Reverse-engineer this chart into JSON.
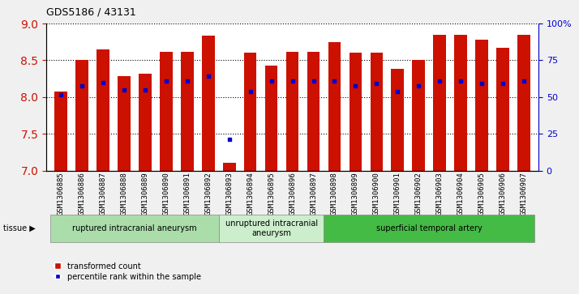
{
  "title": "GDS5186 / 43131",
  "samples": [
    "GSM1306885",
    "GSM1306886",
    "GSM1306887",
    "GSM1306888",
    "GSM1306889",
    "GSM1306890",
    "GSM1306891",
    "GSM1306892",
    "GSM1306893",
    "GSM1306894",
    "GSM1306895",
    "GSM1306896",
    "GSM1306897",
    "GSM1306898",
    "GSM1306899",
    "GSM1306900",
    "GSM1306901",
    "GSM1306902",
    "GSM1306903",
    "GSM1306904",
    "GSM1306905",
    "GSM1306906",
    "GSM1306907"
  ],
  "bar_heights": [
    8.08,
    8.5,
    8.65,
    8.28,
    8.32,
    8.62,
    8.62,
    8.83,
    7.1,
    8.6,
    8.43,
    8.62,
    8.62,
    8.75,
    8.6,
    8.6,
    8.38,
    8.5,
    8.85,
    8.85,
    8.78,
    8.67,
    8.85
  ],
  "blue_dot_y": [
    8.03,
    8.15,
    8.2,
    8.1,
    8.1,
    8.22,
    8.22,
    8.28,
    7.43,
    8.08,
    8.22,
    8.22,
    8.22,
    8.22,
    8.15,
    8.18,
    8.08,
    8.15,
    8.22,
    8.22,
    8.18,
    8.18,
    8.22
  ],
  "groups": [
    {
      "label": "ruptured intracranial aneurysm",
      "start": 0,
      "end": 8,
      "color": "#aaddaa"
    },
    {
      "label": "unruptured intracranial\naneurysm",
      "start": 8,
      "end": 13,
      "color": "#cceecc"
    },
    {
      "label": "superficial temporal artery",
      "start": 13,
      "end": 23,
      "color": "#44bb44"
    }
  ],
  "ylim": [
    7.0,
    9.0
  ],
  "yticks": [
    7.0,
    7.5,
    8.0,
    8.5,
    9.0
  ],
  "right_yticks": [
    0,
    25,
    50,
    75,
    100
  ],
  "right_ytick_labels": [
    "0",
    "25",
    "50",
    "75",
    "100%"
  ],
  "bar_color": "#CC1100",
  "dot_color": "#0000CC",
  "background_color": "#f0f0f0",
  "plot_bg_color": "#ffffff"
}
